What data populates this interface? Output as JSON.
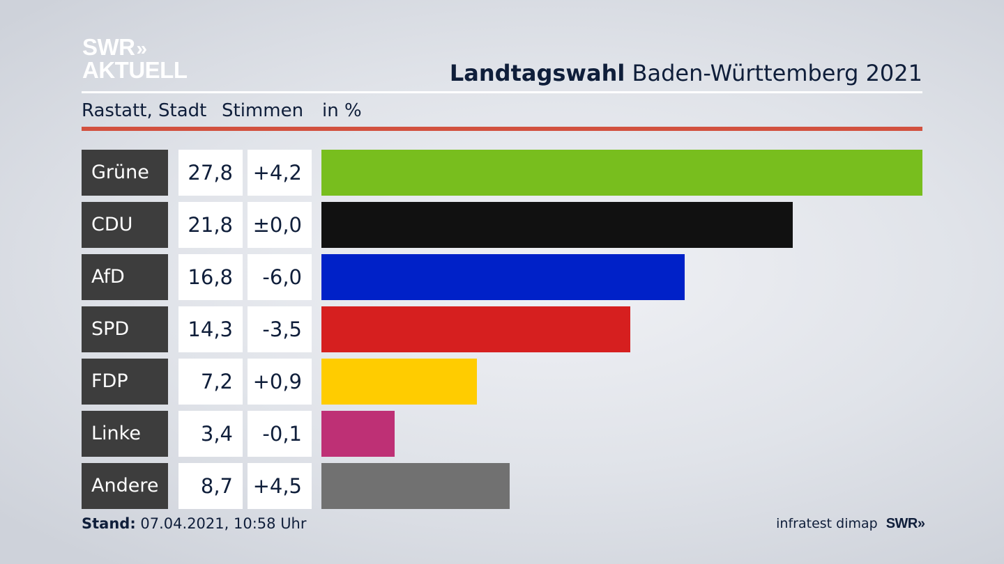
{
  "logo": {
    "line1": "SWR",
    "chevrons": "»",
    "line2": "AKTUELL"
  },
  "header": {
    "title_bold": "Landtagswahl",
    "title_rest": "Baden-Württemberg 2021"
  },
  "subheader": {
    "region": "Rastatt, Stadt",
    "col_votes": "Stimmen",
    "col_unit": "in %"
  },
  "colors": {
    "accent_rule": "#d2513f",
    "label_bg": "#3d3d3d"
  },
  "chart_data": {
    "type": "bar",
    "orientation": "horizontal",
    "title": "Landtagswahl Baden-Württemberg 2021",
    "categories": [
      "Grüne",
      "CDU",
      "AfD",
      "SPD",
      "FDP",
      "Linke",
      "Andere"
    ],
    "values": [
      27.8,
      21.8,
      16.8,
      14.3,
      7.2,
      3.4,
      8.7
    ],
    "value_labels": [
      "27,8",
      "21,8",
      "16,8",
      "14,3",
      "7,2",
      "3,4",
      "8,7"
    ],
    "changes": [
      "+4,2",
      "±0,0",
      "-6,0",
      "-3,5",
      "+0,9",
      "-0,1",
      "+4,5"
    ],
    "colors": [
      "#78be1e",
      "#111111",
      "#0021c8",
      "#d61f1f",
      "#ffcc00",
      "#be3075",
      "#717171"
    ],
    "xlim": [
      0,
      27.8
    ],
    "grid": false,
    "legend": "none"
  },
  "footer": {
    "stand_label": "Stand:",
    "stand_value": "07.04.2021, 10:58 Uhr",
    "source": "infratest dimap",
    "brand": "SWR",
    "brand_chevrons": "»"
  }
}
